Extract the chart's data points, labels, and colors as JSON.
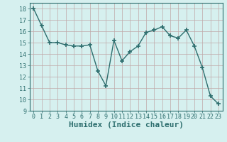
{
  "x": [
    0,
    1,
    2,
    3,
    4,
    5,
    6,
    7,
    8,
    9,
    10,
    11,
    12,
    13,
    14,
    15,
    16,
    17,
    18,
    19,
    20,
    21,
    22,
    23
  ],
  "y": [
    18.0,
    16.5,
    15.0,
    15.0,
    14.8,
    14.7,
    14.7,
    14.8,
    12.5,
    11.2,
    15.2,
    13.4,
    14.2,
    14.7,
    15.9,
    16.1,
    16.4,
    15.6,
    15.4,
    16.1,
    14.7,
    12.8,
    10.3,
    9.6
  ],
  "xlabel": "Humidex (Indice chaleur)",
  "ylim": [
    9,
    18.5
  ],
  "yticks": [
    9,
    10,
    11,
    12,
    13,
    14,
    15,
    16,
    17,
    18
  ],
  "xticks": [
    0,
    1,
    2,
    3,
    4,
    5,
    6,
    7,
    8,
    9,
    10,
    11,
    12,
    13,
    14,
    15,
    16,
    17,
    18,
    19,
    20,
    21,
    22,
    23
  ],
  "line_color": "#2d6e6e",
  "marker": "+",
  "marker_size": 5,
  "bg_color": "#d6f0ef",
  "grid_color": "#c0a8a8",
  "tick_fontsize": 6,
  "xlabel_fontsize": 8,
  "line_width": 1.0
}
